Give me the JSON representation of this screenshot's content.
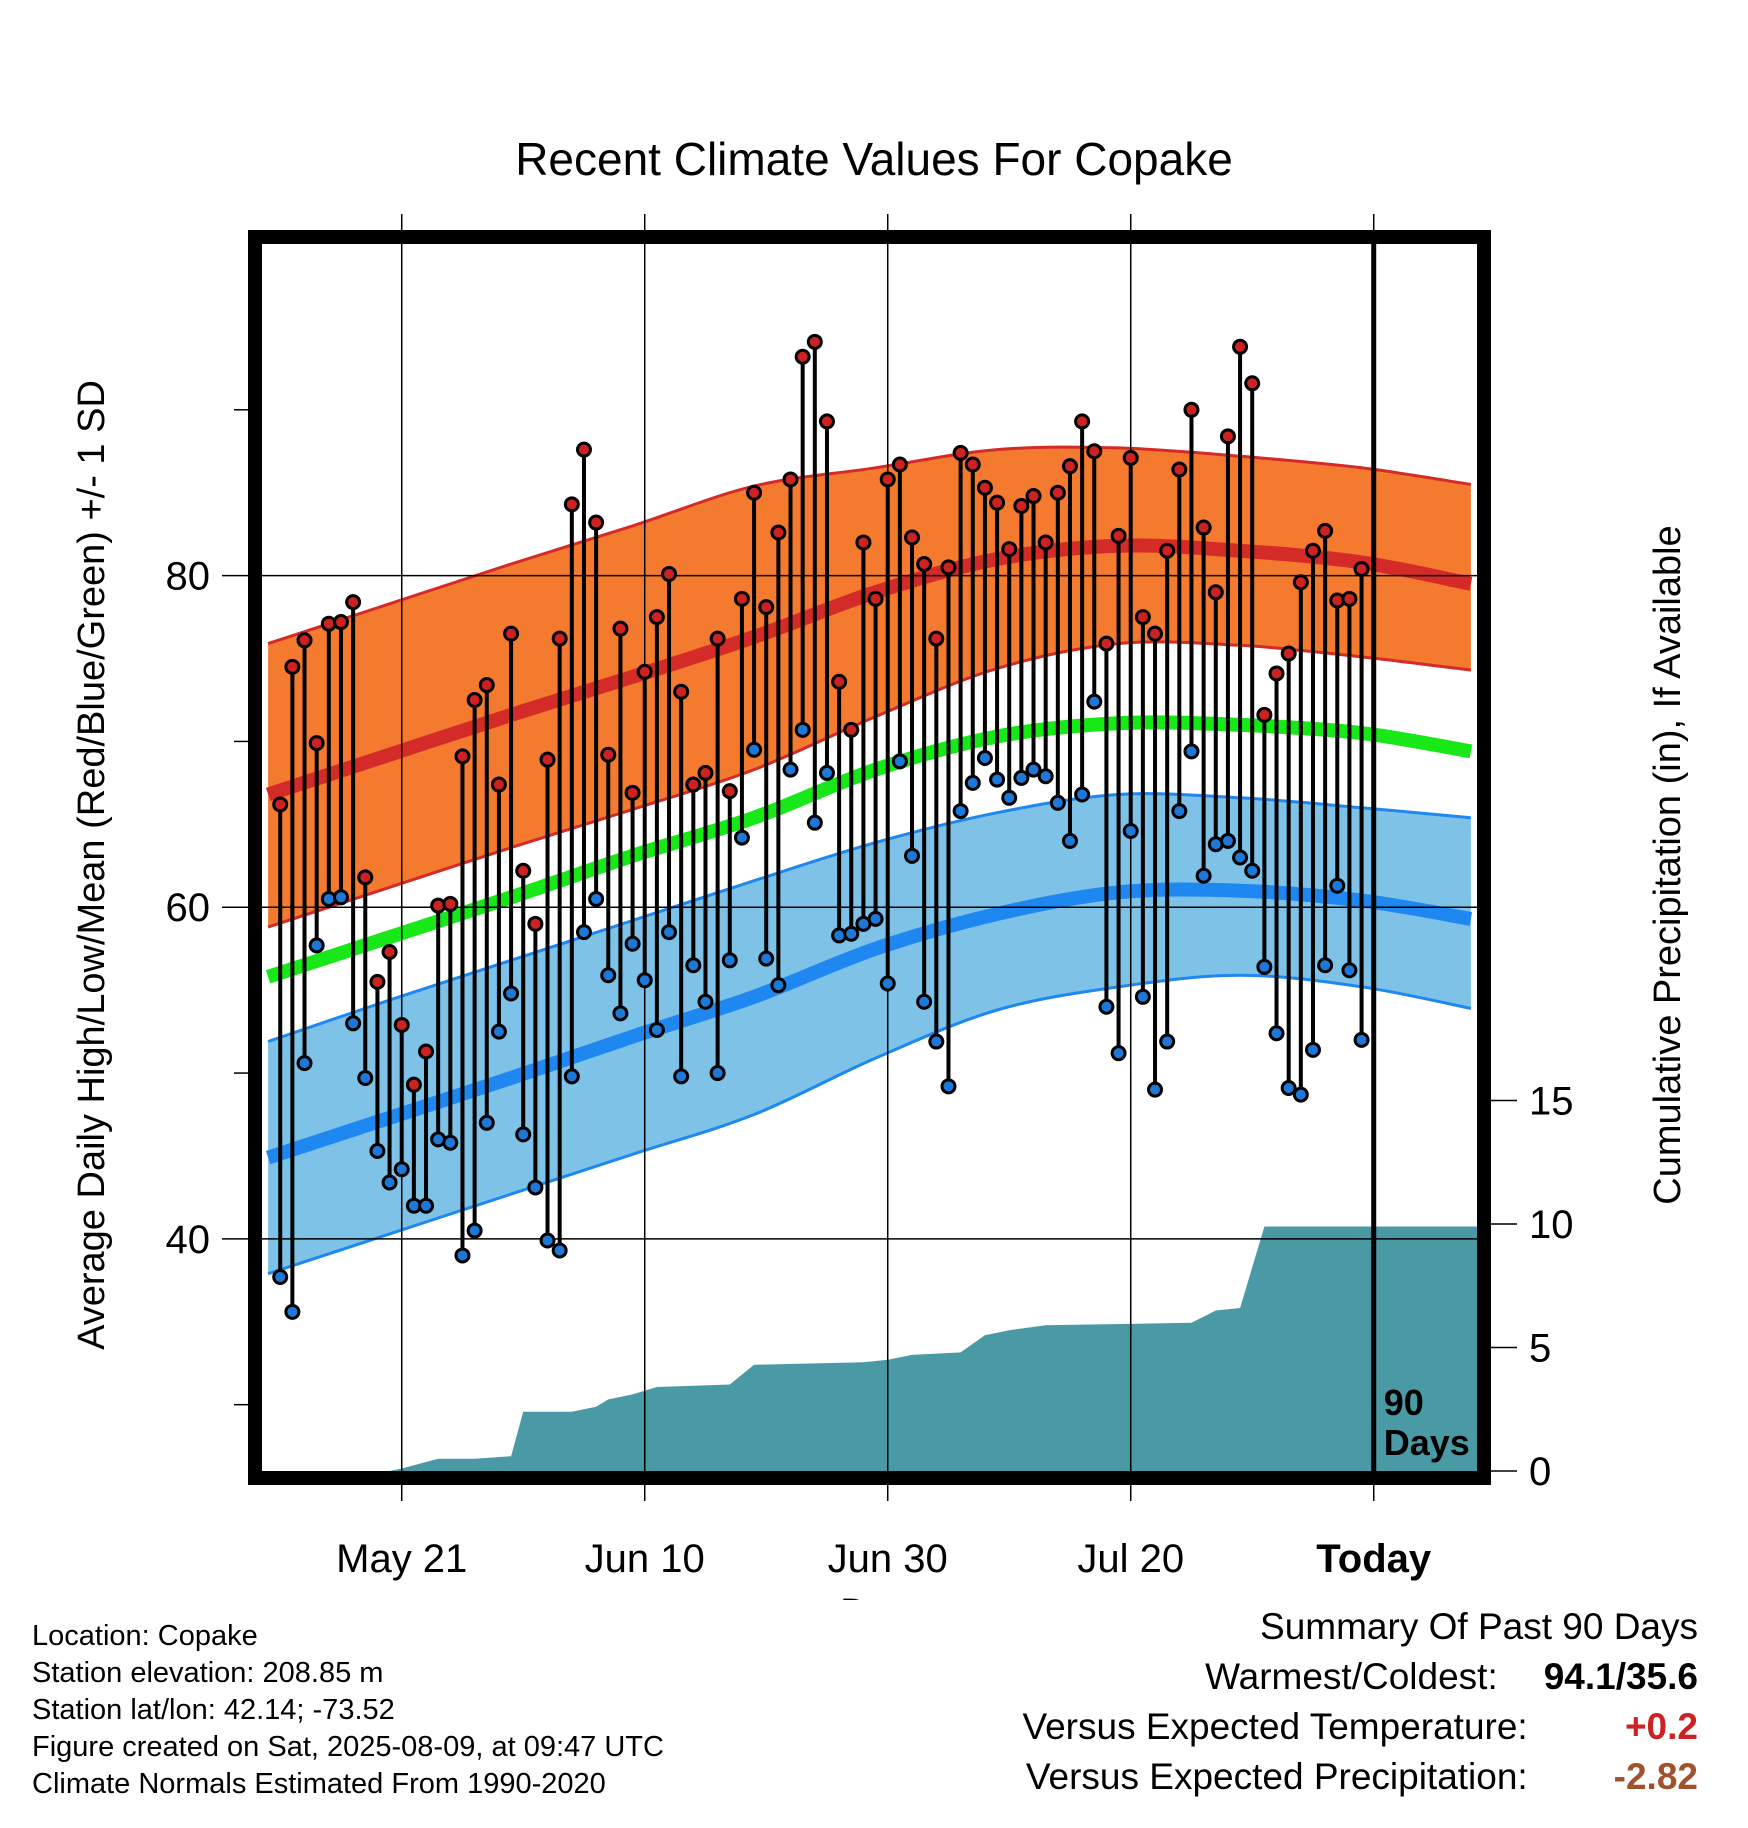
{
  "chart_data": {
    "type": "line",
    "title": "Recent Climate Values For Copake",
    "xlabel": "Day",
    "ylabel": "Average Daily High/Low/Mean (Red/Blue/Green) +/- 1 SD",
    "y2label": "Cumulative Precipitation (in), If Available",
    "x_tick_labels": [
      "May 21",
      "Jun 10",
      "Jun 30",
      "Jul 20",
      "Today"
    ],
    "x_tick_days": [
      10,
      30,
      50,
      70,
      90
    ],
    "y_ticks": [
      40,
      60,
      80
    ],
    "y_minor_ticks": [
      30,
      50,
      70,
      90
    ],
    "y2_ticks": [
      0,
      5,
      10,
      15
    ],
    "ylim": [
      26,
      100
    ],
    "y2lim": [
      0,
      10
    ],
    "xlim": [
      -1.5,
      98.5
    ],
    "today_day": 90,
    "today_label_line1": "90",
    "today_label_line2": "Days",
    "normals_days": [
      -1,
      9,
      19,
      29,
      39,
      49,
      59,
      69,
      79,
      89,
      98
    ],
    "normal_high": [
      66.8,
      69.2,
      71.6,
      73.9,
      76.3,
      79.0,
      81.0,
      81.8,
      81.5,
      80.8,
      79.5
    ],
    "normal_high_upper": [
      75.9,
      78.3,
      80.7,
      83.0,
      85.4,
      86.5,
      87.6,
      87.7,
      87.2,
      86.5,
      85.5
    ],
    "normal_high_lower": [
      58.8,
      61.2,
      63.6,
      65.9,
      68.3,
      71.5,
      74.4,
      75.9,
      75.8,
      75.1,
      74.3
    ],
    "normal_mean": [
      55.8,
      58.2,
      60.6,
      63.1,
      65.4,
      68.3,
      70.3,
      71.1,
      71.0,
      70.5,
      69.4
    ],
    "normal_low": [
      44.9,
      47.3,
      49.7,
      52.2,
      54.6,
      57.5,
      59.6,
      60.9,
      61.0,
      60.4,
      59.3
    ],
    "normal_low_upper": [
      51.9,
      54.4,
      56.8,
      59.2,
      61.6,
      63.9,
      65.7,
      66.8,
      66.6,
      66.0,
      65.4
    ],
    "normal_low_lower": [
      37.9,
      40.3,
      42.7,
      45.1,
      47.5,
      50.9,
      53.8,
      55.2,
      55.9,
      55.2,
      53.9
    ],
    "daily_high": [
      66.2,
      74.5,
      76.1,
      69.9,
      77.1,
      77.2,
      78.4,
      61.8,
      55.5,
      57.3,
      52.9,
      49.3,
      51.3,
      60.1,
      60.2,
      69.1,
      72.5,
      73.4,
      67.4,
      76.5,
      62.2,
      59.0,
      68.9,
      76.2,
      84.3,
      87.6,
      83.2,
      69.2,
      76.8,
      66.9,
      74.2,
      77.5,
      80.1,
      73.0,
      67.4,
      68.1,
      76.2,
      67.0,
      78.6,
      85.0,
      78.1,
      82.6,
      85.8,
      93.2,
      94.1,
      89.3,
      73.6,
      70.7,
      82.0,
      78.6,
      85.8,
      86.7,
      82.3,
      80.7,
      76.2,
      80.5,
      87.4,
      86.7,
      85.3,
      84.4,
      81.6,
      84.2,
      84.8,
      82.0,
      85.0,
      86.6,
      89.3,
      87.5,
      75.9,
      82.4,
      87.1,
      77.5,
      76.5,
      81.5,
      86.4,
      90.0,
      82.9,
      79.0,
      88.4,
      93.8,
      91.6,
      71.6,
      74.1,
      75.3,
      79.6,
      81.5,
      82.7,
      78.5,
      78.6,
      80.4
    ],
    "daily_low": [
      37.7,
      35.6,
      50.6,
      57.7,
      60.5,
      60.6,
      53.0,
      49.7,
      45.3,
      43.4,
      44.2,
      42.0,
      42.0,
      46.0,
      45.8,
      39.0,
      40.5,
      47.0,
      52.5,
      54.8,
      46.3,
      43.1,
      39.9,
      39.3,
      49.8,
      58.5,
      60.5,
      55.9,
      53.6,
      57.8,
      55.6,
      52.6,
      58.5,
      49.8,
      56.5,
      54.3,
      50.0,
      56.8,
      64.2,
      69.5,
      56.9,
      55.3,
      68.3,
      70.7,
      65.1,
      68.1,
      58.3,
      58.4,
      59.0,
      59.3,
      55.4,
      68.8,
      63.1,
      54.3,
      51.9,
      49.2,
      65.8,
      67.5,
      69.0,
      67.7,
      66.6,
      67.8,
      68.3,
      67.9,
      66.3,
      64.0,
      66.8,
      72.4,
      54.0,
      51.2,
      64.6,
      54.6,
      49.0,
      51.9,
      65.8,
      69.4,
      61.9,
      63.8,
      64.0,
      63.0,
      62.2,
      56.4,
      52.4,
      49.1,
      48.7,
      51.4,
      56.5,
      61.3,
      56.2,
      52.0
    ],
    "precip_days": [
      9,
      10,
      13,
      16,
      19,
      20,
      24,
      26,
      27,
      29,
      31,
      37,
      39,
      48,
      50,
      52,
      56,
      58,
      60,
      63,
      75,
      77,
      79,
      81,
      95,
      98.5
    ],
    "precip_cum": [
      0.0,
      0.1,
      0.5,
      0.5,
      0.6,
      2.4,
      2.4,
      2.6,
      2.9,
      3.1,
      3.4,
      3.5,
      4.3,
      4.4,
      4.5,
      4.7,
      4.8,
      5.5,
      5.7,
      5.9,
      6.0,
      6.5,
      6.6,
      9.9,
      9.9,
      9.9
    ],
    "colors": {
      "high_band": "#f47a30",
      "high_line": "#d42a28",
      "low_band": "#7ec2e8",
      "low_line": "#1e88f0",
      "mean_line": "#18e818",
      "precip_fill": "#4a9aa5",
      "high_marker": "#cc2222",
      "low_marker": "#1e78d8"
    }
  },
  "footer": {
    "location": "Location: Copake",
    "elevation": "Station elevation: 208.85 m",
    "latlon": "Station lat/lon: 42.14; -73.52",
    "created": "Figure created on Sat, 2025-08-09, at 09:47 UTC",
    "normals": "Climate Normals Estimated From 1990-2020"
  },
  "summary": {
    "heading": "Summary Of Past 90 Days",
    "warm_cold_label": "Warmest/Coldest:",
    "warm_cold_value": "94.1/35.6",
    "temp_label": "Versus Expected Temperature:",
    "temp_value": "+0.2",
    "temp_color": "#cc2222",
    "precip_label": "Versus Expected Precipitation:",
    "precip_value": "-2.82",
    "precip_color": "#a0522d"
  }
}
